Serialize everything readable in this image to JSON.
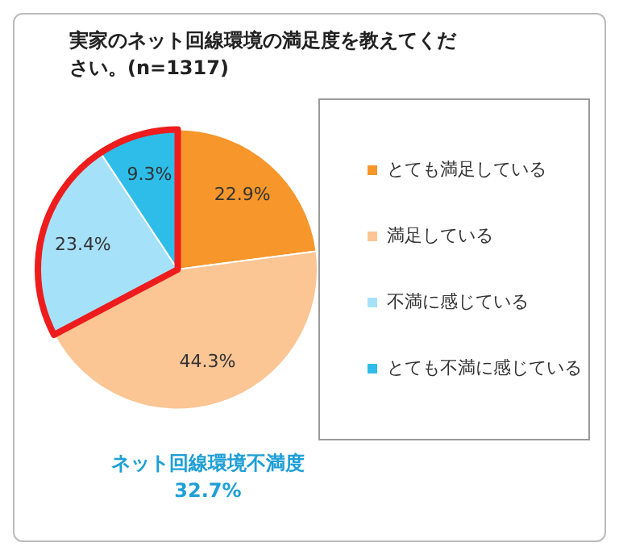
{
  "chart_data": {
    "type": "pie",
    "title": "実家のネット回線環境の満足度を教えてください。(n=1317)",
    "categories": [
      "とても満足している",
      "満足している",
      "不満に感じている",
      "とても不満に感じている"
    ],
    "values": [
      22.9,
      44.3,
      23.4,
      9.3
    ],
    "colors": [
      "#f7962a",
      "#fbc594",
      "#a6e1fa",
      "#2ebde9"
    ],
    "value_labels": [
      "22.9%",
      "44.3%",
      "23.4%",
      "9.3%"
    ],
    "legend": "right",
    "annotations": [
      "ネット回線環境不満度",
      "32.7%"
    ]
  }
}
